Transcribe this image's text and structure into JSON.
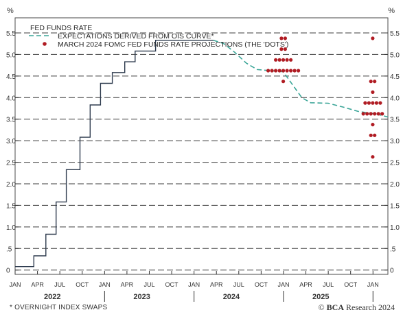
{
  "chart_data": {
    "type": "line",
    "unit_left": "%",
    "unit_right": "%",
    "yticks": [
      "0",
      ".5",
      "1.0",
      "1.5",
      "2.0",
      "2.5",
      "3.0",
      "3.5",
      "4.0",
      "4.5",
      "5.0",
      "5.5"
    ],
    "ytick_values": [
      0,
      0.5,
      1.0,
      1.5,
      2.0,
      2.5,
      3.0,
      3.5,
      4.0,
      4.5,
      5.0,
      5.5
    ],
    "ylim": [
      -0.1,
      5.85
    ],
    "xlim": [
      "2022-01",
      "2026-03"
    ],
    "grid": true,
    "x_month_ticks": [
      "JAN",
      "APR",
      "JUL",
      "OCT",
      "JAN",
      "APR",
      "JUL",
      "OCT",
      "JAN",
      "APR",
      "JUL",
      "OCT",
      "JAN",
      "APR",
      "JUL",
      "OCT",
      "JAN"
    ],
    "x_month_tick_dates": [
      "2022-01",
      "2022-04",
      "2022-07",
      "2022-10",
      "2023-01",
      "2023-04",
      "2023-07",
      "2023-10",
      "2024-01",
      "2024-04",
      "2024-07",
      "2024-10",
      "2025-01",
      "2025-04",
      "2025-07",
      "2025-10",
      "2026-01"
    ],
    "x_years": [
      {
        "label": "2022",
        "date": "2022-06"
      },
      {
        "label": "2023",
        "date": "2023-06"
      },
      {
        "label": "2024",
        "date": "2024-06"
      },
      {
        "label": "2025",
        "date": "2025-06"
      }
    ],
    "legend": [
      {
        "label": "FED FUNDS RATE",
        "style": "solid",
        "color": "#2e3b4e"
      },
      {
        "label": "EXPECTATIONS DERIVED FROM OIS CURVE*",
        "style": "dashed",
        "color": "#3aa597"
      },
      {
        "label": "MARCH 2024 FOMC FED FUNDS RATE PROJECTIONS (THE 'DOTS')",
        "style": "dot",
        "color": "#b01c23"
      }
    ],
    "series": [
      {
        "name": "FED FUNDS RATE",
        "kind": "step",
        "color": "#2e3b4e",
        "points": [
          [
            "2022-01-01",
            0.08
          ],
          [
            "2022-03-17",
            0.33
          ],
          [
            "2022-05-05",
            0.83
          ],
          [
            "2022-06-16",
            1.58
          ],
          [
            "2022-07-28",
            2.33
          ],
          [
            "2022-09-22",
            3.08
          ],
          [
            "2022-11-03",
            3.83
          ],
          [
            "2022-12-15",
            4.33
          ],
          [
            "2023-02-02",
            4.58
          ],
          [
            "2023-03-23",
            4.83
          ],
          [
            "2023-05-04",
            5.08
          ],
          [
            "2023-07-27",
            5.33
          ],
          [
            "2024-03-20",
            5.33
          ]
        ]
      },
      {
        "name": "EXPECTATIONS DERIVED FROM OIS CURVE*",
        "kind": "line",
        "color": "#3aa597",
        "points": [
          [
            "2024-03-20",
            5.33
          ],
          [
            "2024-05-01",
            5.25
          ],
          [
            "2024-06-15",
            5.05
          ],
          [
            "2024-08-01",
            4.8
          ],
          [
            "2024-09-15",
            4.65
          ],
          [
            "2024-11-15",
            4.62
          ],
          [
            "2024-12-31",
            4.6
          ],
          [
            "2025-02-01",
            4.35
          ],
          [
            "2025-03-15",
            4.0
          ],
          [
            "2025-04-20",
            3.88
          ],
          [
            "2025-07-01",
            3.87
          ],
          [
            "2025-09-01",
            3.78
          ],
          [
            "2025-11-01",
            3.68
          ],
          [
            "2026-01-15",
            3.62
          ],
          [
            "2026-03-01",
            3.55
          ]
        ]
      }
    ],
    "dots": [
      {
        "date": "2024-12-31",
        "values": [
          {
            "y": 5.375,
            "count": 2
          },
          {
            "y": 5.125,
            "count": 2
          },
          {
            "y": 4.875,
            "count": 5
          },
          {
            "y": 4.625,
            "count": 9
          },
          {
            "y": 4.375,
            "count": 1
          }
        ]
      },
      {
        "date": "2025-12-31",
        "values": [
          {
            "y": 5.375,
            "count": 1
          },
          {
            "y": 4.375,
            "count": 2
          },
          {
            "y": 4.125,
            "count": 1
          },
          {
            "y": 3.875,
            "count": 5
          },
          {
            "y": 3.625,
            "count": 6
          },
          {
            "y": 3.375,
            "count": 1
          },
          {
            "y": 3.125,
            "count": 2
          },
          {
            "y": 2.625,
            "count": 1
          }
        ]
      }
    ]
  },
  "footnote": "* OVERNIGHT INDEX SWAPS",
  "source": {
    "copyright": "©",
    "brand": "BCA",
    "rest": " Research 2024"
  }
}
